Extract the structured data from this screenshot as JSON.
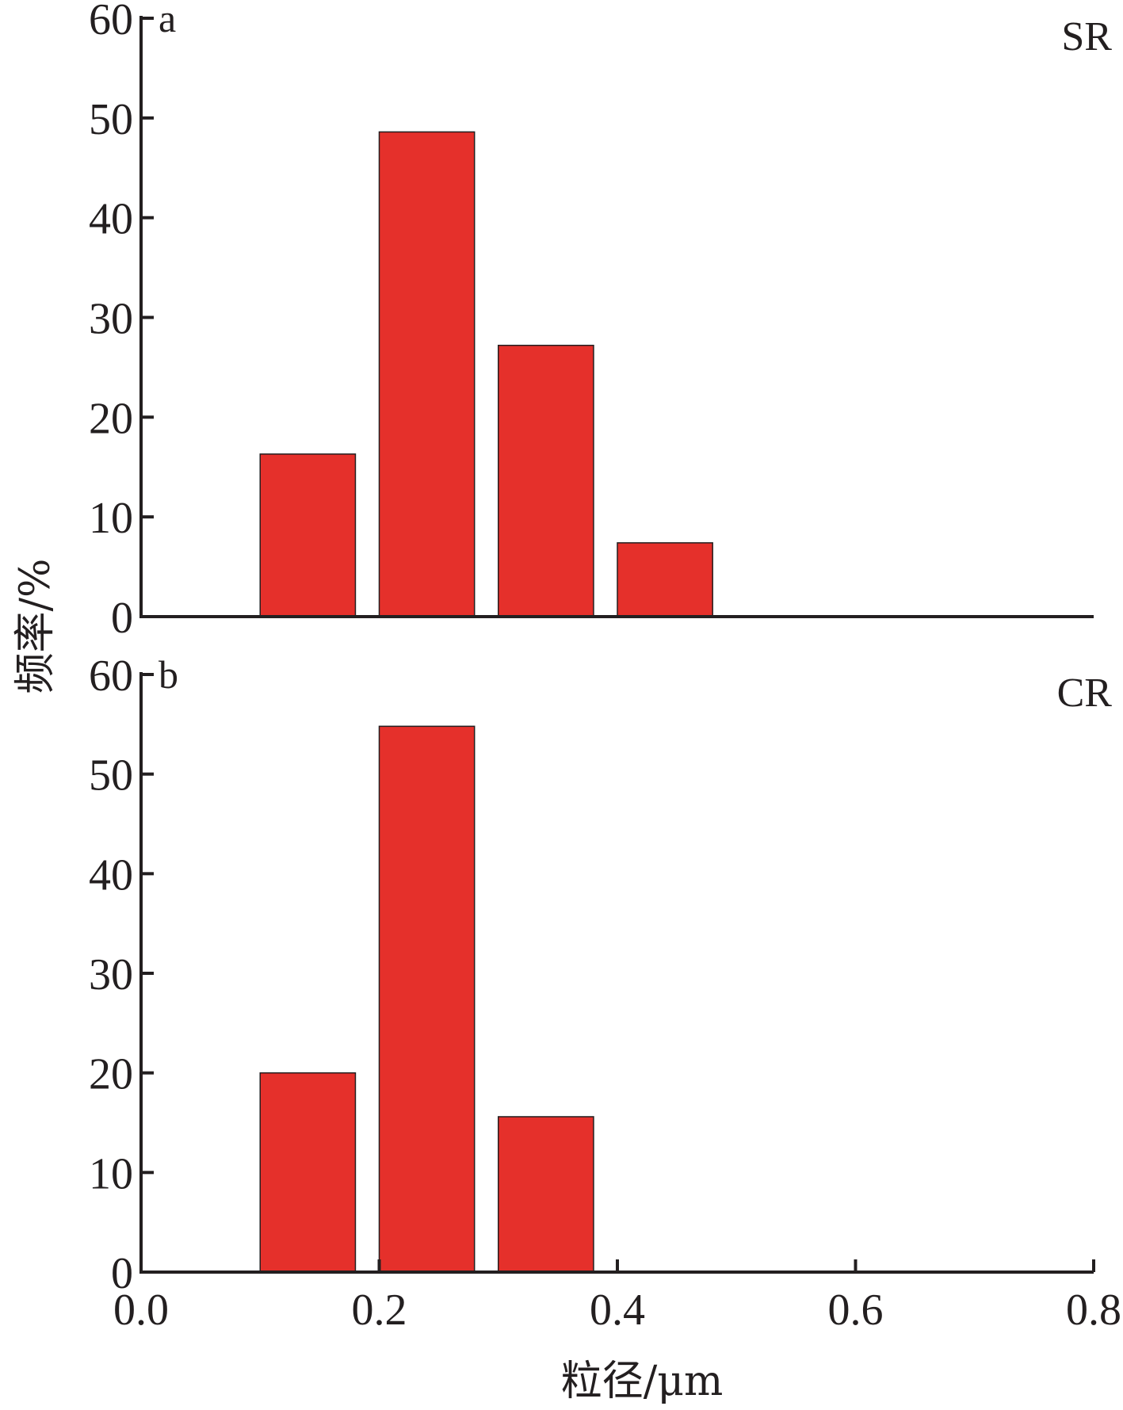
{
  "colors": {
    "bar": "#e5302b",
    "axis": "#231f20"
  },
  "ylabel": "频率/%",
  "xlabel": "粒径/μm",
  "chart_data": [
    {
      "type": "bar",
      "panel": "a",
      "tag": "SR",
      "bin_width": 0.08,
      "x": [
        0.14,
        0.24,
        0.34,
        0.44
      ],
      "values": [
        16.3,
        48.6,
        27.2,
        7.4
      ],
      "xlim": [
        0.0,
        0.8
      ],
      "ylim": [
        0,
        60
      ],
      "yticks": [
        0,
        10,
        20,
        30,
        40,
        50,
        60
      ],
      "ytick_labels": [
        "0",
        "10",
        "20",
        "30",
        "40",
        "50",
        "60"
      ]
    },
    {
      "type": "bar",
      "panel": "b",
      "tag": "CR",
      "bin_width": 0.08,
      "x": [
        0.14,
        0.24,
        0.34
      ],
      "values": [
        20.0,
        54.8,
        15.6
      ],
      "xlim": [
        0.0,
        0.8
      ],
      "ylim": [
        0,
        60
      ],
      "yticks": [
        0,
        10,
        20,
        30,
        40,
        50,
        60
      ],
      "ytick_labels": [
        "0",
        "10",
        "20",
        "30",
        "40",
        "50",
        "60"
      ],
      "xticks": [
        0.0,
        0.2,
        0.4,
        0.6,
        0.8
      ],
      "xtick_labels": [
        "0.0",
        "0.2",
        "0.4",
        "0.6",
        "0.8"
      ]
    }
  ]
}
